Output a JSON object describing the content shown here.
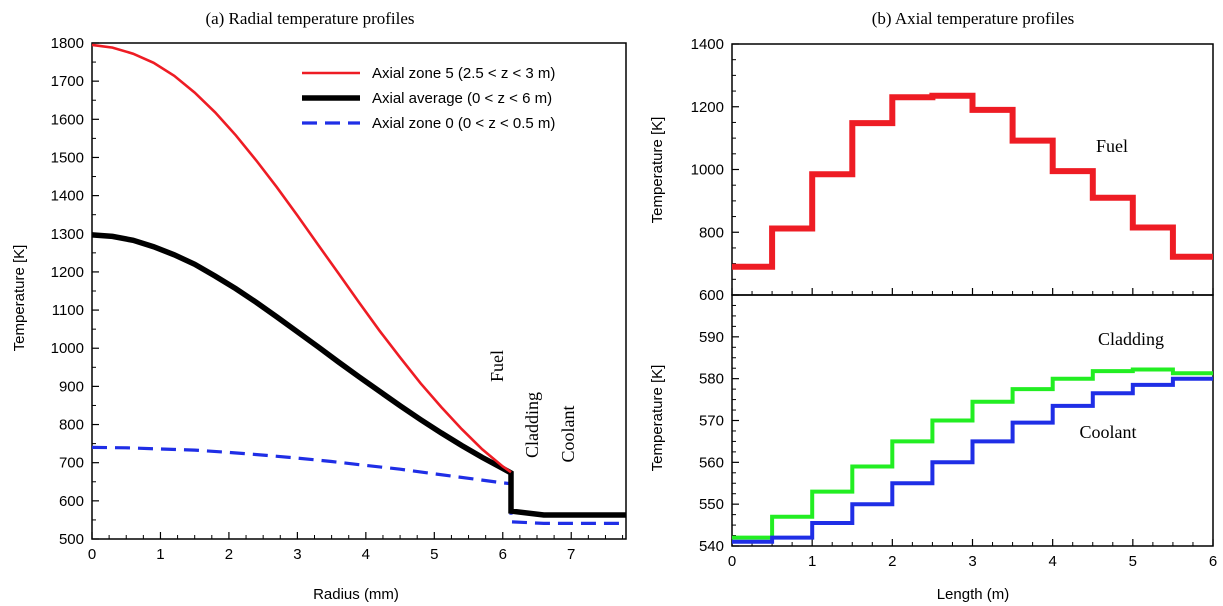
{
  "chart_data": [
    {
      "type": "line",
      "title": "(a) Radial temperature profiles",
      "xlabel": "Radius (mm)",
      "ylabel": "Temperature [K]",
      "xlim": [
        0,
        7.8
      ],
      "ylim": [
        500,
        1800
      ],
      "xticks": [
        0,
        1,
        2,
        3,
        4,
        5,
        6,
        7
      ],
      "yticks": [
        500,
        600,
        700,
        800,
        900,
        1000,
        1100,
        1200,
        1300,
        1400,
        1500,
        1600,
        1700,
        1800
      ],
      "legend_position": "top-right",
      "region_labels": [
        "Fuel",
        "Cladding",
        "Coolant"
      ],
      "series": [
        {
          "name": "Axial zone 5 (2.5 < z < 3 m)",
          "color": "#ee1c24",
          "style": "solid",
          "x": [
            0,
            0.3,
            0.6,
            0.9,
            1.2,
            1.5,
            1.8,
            2.1,
            2.4,
            2.7,
            3.0,
            3.3,
            3.6,
            3.9,
            4.2,
            4.5,
            4.8,
            5.1,
            5.4,
            5.7,
            6.0,
            6.12
          ],
          "y": [
            1795,
            1788,
            1772,
            1748,
            1714,
            1670,
            1618,
            1558,
            1492,
            1422,
            1348,
            1272,
            1196,
            1120,
            1046,
            976,
            908,
            846,
            788,
            735,
            690,
            675
          ]
        },
        {
          "name": "Axial average (0 < z < 6 m)",
          "color": "#000000",
          "style": "thick",
          "x": [
            0,
            0.3,
            0.6,
            0.9,
            1.2,
            1.5,
            1.8,
            2.1,
            2.4,
            2.7,
            3.0,
            3.3,
            3.6,
            3.9,
            4.2,
            4.5,
            4.8,
            5.1,
            5.4,
            5.7,
            6.0,
            6.12,
            6.12,
            6.6,
            7.8
          ],
          "y": [
            1297,
            1293,
            1283,
            1266,
            1245,
            1220,
            1189,
            1156,
            1120,
            1082,
            1043,
            1004,
            964,
            925,
            887,
            849,
            813,
            778,
            745,
            714,
            685,
            673,
            573,
            563,
            563
          ]
        },
        {
          "name": "Axial zone 0 (0 < z < 0.5 m)",
          "color": "#1f2ee6",
          "style": "dashed",
          "x": [
            0,
            0.5,
            1.0,
            1.5,
            2.0,
            2.5,
            3.0,
            3.5,
            4.0,
            4.5,
            5.0,
            5.5,
            6.0,
            6.12,
            6.12,
            6.6,
            7.8
          ],
          "y": [
            740,
            739,
            736,
            733,
            727,
            720,
            712,
            703,
            693,
            683,
            671,
            659,
            647,
            645,
            545,
            541,
            541
          ]
        }
      ]
    },
    {
      "type": "line",
      "title": "(b) Axial temperature profiles",
      "xlabel": "Length (m)",
      "xlim": [
        0,
        6
      ],
      "xticks": [
        0,
        1,
        2,
        3,
        4,
        5,
        6
      ],
      "panels": [
        {
          "ylabel": "Temperature [K]",
          "ylim": [
            600,
            1400
          ],
          "yticks": [
            600,
            800,
            1000,
            1200,
            1400
          ],
          "series": [
            {
              "name": "Fuel",
              "color": "#ee1c24",
              "step_edges": [
                0,
                0.5,
                1,
                1.5,
                2,
                2.5,
                3,
                3.5,
                4,
                4.5,
                5,
                5.5,
                6
              ],
              "values": [
                690,
                812,
                985,
                1148,
                1230,
                1235,
                1190,
                1092,
                995,
                910,
                815,
                722
              ]
            }
          ]
        },
        {
          "ylabel": "Temperature [K]",
          "ylim": [
            540,
            600
          ],
          "yticks": [
            540,
            550,
            560,
            570,
            580,
            590
          ],
          "series": [
            {
              "name": "Cladding",
              "color": "#22ee22",
              "step_edges": [
                0,
                0.5,
                1,
                1.5,
                2,
                2.5,
                3,
                3.5,
                4,
                4.5,
                5,
                5.5,
                6
              ],
              "values": [
                542,
                547,
                553,
                559,
                565,
                570,
                574.5,
                577.5,
                580,
                581.8,
                582.2,
                581.3
              ]
            },
            {
              "name": "Coolant",
              "color": "#1f2ee6",
              "step_edges": [
                0,
                0.5,
                1,
                1.5,
                2,
                2.5,
                3,
                3.5,
                4,
                4.5,
                5,
                5.5,
                6
              ],
              "values": [
                541,
                542,
                545.5,
                550,
                555,
                560,
                565,
                569.5,
                573.5,
                576.5,
                578.5,
                580
              ]
            }
          ]
        }
      ]
    }
  ]
}
